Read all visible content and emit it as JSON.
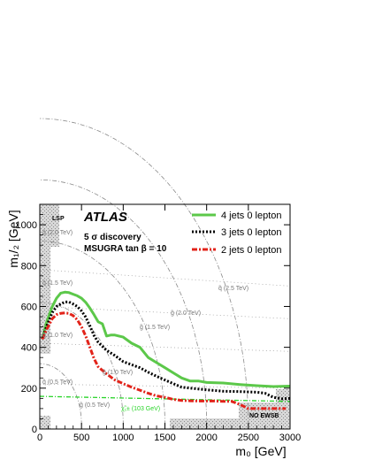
{
  "chart_data": {
    "type": "line",
    "title": "",
    "brand": "ATLAS",
    "subtitle_lines": [
      "5 σ discovery",
      "MSUGRA tan β = 10"
    ],
    "xlabel": "m₀ [GeV]",
    "ylabel": "m₁/₂ [GeV]",
    "xlim": [
      0,
      3000
    ],
    "ylim": [
      0,
      1100
    ],
    "x_ticks": [
      0,
      500,
      1000,
      1500,
      2000,
      2500,
      3000
    ],
    "y_ticks": [
      0,
      200,
      400,
      600,
      800,
      1000
    ],
    "legend_position": "top-right",
    "series": [
      {
        "name": "4 jets 0 lepton",
        "color": "#5cc84a",
        "style": "solid",
        "x": [
          30,
          80,
          150,
          200,
          250,
          300,
          350,
          400,
          450,
          500,
          550,
          600,
          650,
          700,
          750,
          800,
          850,
          900,
          1000,
          1100,
          1200,
          1300,
          1400,
          1500,
          1600,
          1700,
          1800,
          1900,
          2000,
          2200,
          2400,
          2600,
          2800,
          3000
        ],
        "y": [
          440,
          520,
          600,
          640,
          665,
          670,
          668,
          660,
          652,
          640,
          620,
          592,
          560,
          525,
          515,
          455,
          460,
          460,
          450,
          420,
          400,
          350,
          325,
          300,
          275,
          250,
          235,
          235,
          228,
          225,
          218,
          212,
          208,
          210
        ]
      },
      {
        "name": "3 jets 0 lepton",
        "color": "#000000",
        "style": "dotted",
        "x": [
          30,
          80,
          150,
          200,
          250,
          300,
          350,
          400,
          450,
          500,
          550,
          600,
          650,
          700,
          800,
          900,
          1000,
          1100,
          1200,
          1300,
          1400,
          1500,
          1600,
          1700,
          1800,
          1900,
          2000,
          2200,
          2400,
          2600,
          2700,
          2800,
          2900,
          3000
        ],
        "y": [
          440,
          500,
          570,
          600,
          612,
          622,
          622,
          612,
          600,
          578,
          548,
          505,
          458,
          425,
          385,
          360,
          330,
          315,
          300,
          278,
          258,
          240,
          222,
          205,
          200,
          196,
          192,
          185,
          183,
          180,
          175,
          155,
          148,
          150
        ]
      },
      {
        "name": "2 jets 0 lepton",
        "color": "#e2231a",
        "style": "dashdot",
        "x": [
          30,
          80,
          150,
          200,
          250,
          300,
          350,
          400,
          450,
          500,
          550,
          600,
          650,
          700,
          800,
          900,
          1000,
          1100,
          1200,
          1300,
          1400,
          1500,
          1600,
          1700,
          1800,
          1900,
          2000,
          2100,
          2200,
          2300,
          2400,
          2450,
          2500,
          2600,
          2800,
          2950
        ],
        "y": [
          440,
          485,
          540,
          560,
          566,
          568,
          566,
          555,
          535,
          500,
          455,
          400,
          345,
          305,
          270,
          240,
          222,
          205,
          190,
          175,
          162,
          155,
          145,
          140,
          138,
          137,
          137,
          137,
          135,
          135,
          120,
          110,
          100,
          100,
          100,
          100
        ]
      }
    ],
    "excluded_regions": [
      "LSP",
      "NO EWSB"
    ],
    "squark_labels": [
      "q̃ (0.5 TeV)",
      "q̃ (1.0 TeV)",
      "q̃ (1.5 TeV)",
      "q̃ (2.0 TeV)",
      "q̃ (2.5 TeV)"
    ],
    "gluino_labels": [
      "g̃ (0.5 TeV)",
      "g̃ (1.0 TeV)",
      "g̃ (1.5 TeV)",
      "g̃ (2.0 TeV)"
    ],
    "chargino_label": "χ̃₁± (103 GeV)",
    "chargino_y": 160
  }
}
